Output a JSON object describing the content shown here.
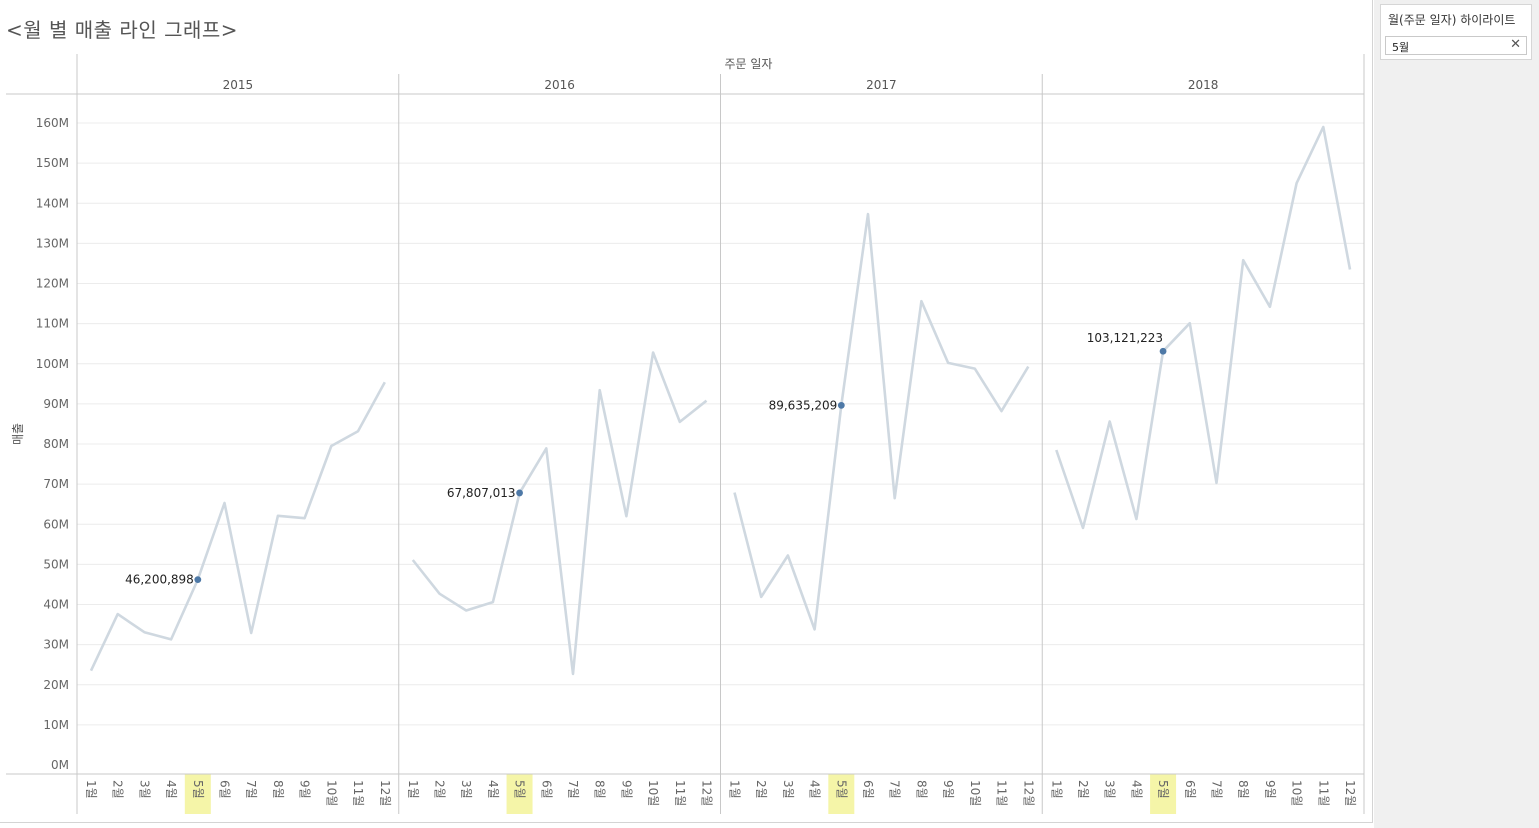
{
  "title": "<월 별 매출 라인 그래프>",
  "highlight": {
    "title": "월(주문 일자) 하이라이트",
    "value": "5월",
    "clear_icon": "close-icon"
  },
  "chart_data": {
    "type": "line",
    "column_header": "주문 일자",
    "ylabel": "매출",
    "y_unit_suffix": "M",
    "ylim": [
      0,
      160000000
    ],
    "y_ticks": [
      0,
      10000000,
      20000000,
      30000000,
      40000000,
      50000000,
      60000000,
      70000000,
      80000000,
      90000000,
      100000000,
      110000000,
      120000000,
      130000000,
      140000000,
      150000000,
      160000000
    ],
    "y_tick_labels": [
      "0M",
      "10M",
      "20M",
      "30M",
      "40M",
      "50M",
      "60M",
      "70M",
      "80M",
      "90M",
      "100M",
      "110M",
      "120M",
      "130M",
      "140M",
      "150M",
      "160M"
    ],
    "month_labels": [
      "1월",
      "2월",
      "3월",
      "4월",
      "5월",
      "6월",
      "7월",
      "8월",
      "9월",
      "10월",
      "11월",
      "12월"
    ],
    "highlight_month_index": 4,
    "colors": {
      "line": "#cfd8e0",
      "point": "#4e79a7",
      "highlight_band": "#f5f5a8",
      "grid": "#ececec",
      "divider": "#c8c8c8"
    },
    "panels": [
      {
        "year": "2015",
        "values": [
          23500000,
          37600000,
          33100000,
          31300000,
          46200898,
          65300000,
          32900000,
          62100000,
          61500000,
          79500000,
          83200000,
          95400000
        ],
        "label": "46,200,898"
      },
      {
        "year": "2016",
        "values": [
          51100000,
          42700000,
          38500000,
          40600000,
          67807013,
          78900000,
          22700000,
          93400000,
          62000000,
          102800000,
          85500000,
          90800000
        ],
        "label": "67,807,013"
      },
      {
        "year": "2017",
        "values": [
          67900000,
          41900000,
          52200000,
          33800000,
          89635209,
          137300000,
          66500000,
          115600000,
          100200000,
          98800000,
          88200000,
          99300000
        ],
        "label": "89,635,209"
      },
      {
        "year": "2018",
        "values": [
          78500000,
          59100000,
          85600000,
          61300000,
          103121223,
          110100000,
          70300000,
          125800000,
          114200000,
          145000000,
          159000000,
          123500000
        ],
        "label": "103,121,223"
      }
    ]
  }
}
